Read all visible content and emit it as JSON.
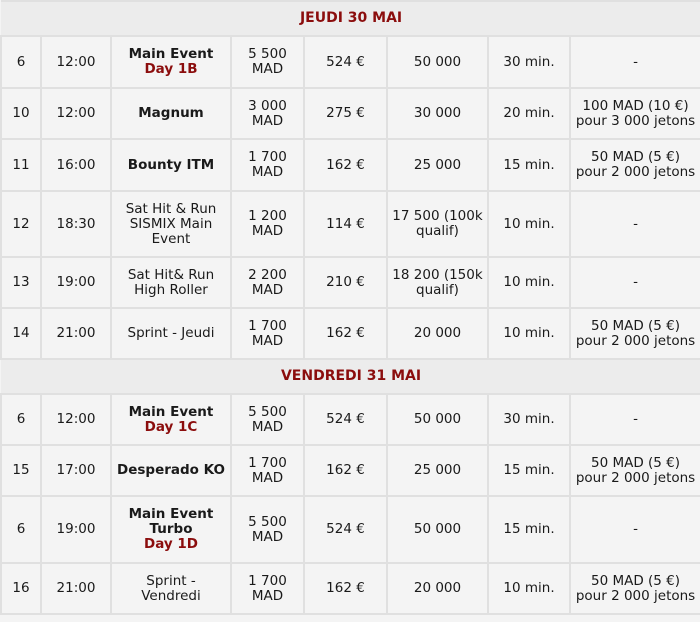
{
  "colors": {
    "accent": "#8b0d0d",
    "cell_bg": "#f4f4f4",
    "header_bg": "#ececec",
    "border": "#e0e0e0"
  },
  "sections": [
    {
      "title": "JEUDI 30 MAI",
      "rows": [
        {
          "num": "6",
          "time": "12:00",
          "name": "Main Event",
          "name_bold": true,
          "sub": "Day 1B",
          "buyin": "5 500 MAD",
          "eur": "524 €",
          "stack": "50 000",
          "levels": "30 min.",
          "addon": "-"
        },
        {
          "num": "10",
          "time": "12:00",
          "name": "Magnum",
          "name_bold": true,
          "sub": "",
          "buyin": "3 000 MAD",
          "eur": "275 €",
          "stack": "30 000",
          "levels": "20 min.",
          "addon": "100 MAD (10 €) pour 3 000 jetons"
        },
        {
          "num": "11",
          "time": "16:00",
          "name": "Bounty ITM",
          "name_bold": true,
          "sub": "",
          "buyin": "1 700 MAD",
          "eur": "162 €",
          "stack": "25 000",
          "levels": "15 min.",
          "addon": "50 MAD (5 €) pour 2 000 jetons"
        },
        {
          "num": "12",
          "time": "18:30",
          "name": "Sat Hit & Run SISMIX Main Event",
          "name_bold": false,
          "sub": "",
          "buyin": "1 200 MAD",
          "eur": "114 €",
          "stack": "17 500 (100k qualif)",
          "levels": "10 min.",
          "addon": "-"
        },
        {
          "num": "13",
          "time": "19:00",
          "name": "Sat Hit& Run High Roller",
          "name_bold": false,
          "sub": "",
          "buyin": "2 200 MAD",
          "eur": "210 €",
          "stack": "18 200 (150k qualif)",
          "levels": "10 min.",
          "addon": "-"
        },
        {
          "num": "14",
          "time": "21:00",
          "name": "Sprint - Jeudi",
          "name_bold": false,
          "sub": "",
          "buyin": "1 700 MAD",
          "eur": "162 €",
          "stack": "20 000",
          "levels": "10 min.",
          "addon": "50 MAD (5 €) pour 2 000 jetons"
        }
      ]
    },
    {
      "title": "VENDREDI 31 MAI",
      "rows": [
        {
          "num": "6",
          "time": "12:00",
          "name": "Main Event",
          "name_bold": true,
          "sub": "Day 1C",
          "buyin": "5 500 MAD",
          "eur": "524 €",
          "stack": "50 000",
          "levels": "30 min.",
          "addon": "-"
        },
        {
          "num": "15",
          "time": "17:00",
          "name": "Desperado KO",
          "name_bold": true,
          "sub": "",
          "buyin": "1 700 MAD",
          "eur": "162 €",
          "stack": "25 000",
          "levels": "15 min.",
          "addon": "50 MAD (5 €) pour 2 000 jetons"
        },
        {
          "num": "6",
          "time": "19:00",
          "name": "Main Event Turbo",
          "name_bold": true,
          "sub": "Day 1D",
          "buyin": "5 500 MAD",
          "eur": "524 €",
          "stack": "50 000",
          "levels": "15 min.",
          "addon": "-"
        },
        {
          "num": "16",
          "time": "21:00",
          "name": "Sprint - Vendredi",
          "name_bold": false,
          "sub": "",
          "buyin": "1 700 MAD",
          "eur": "162 €",
          "stack": "20 000",
          "levels": "10 min.",
          "addon": "50 MAD (5 €) pour 2 000 jetons"
        }
      ]
    }
  ]
}
